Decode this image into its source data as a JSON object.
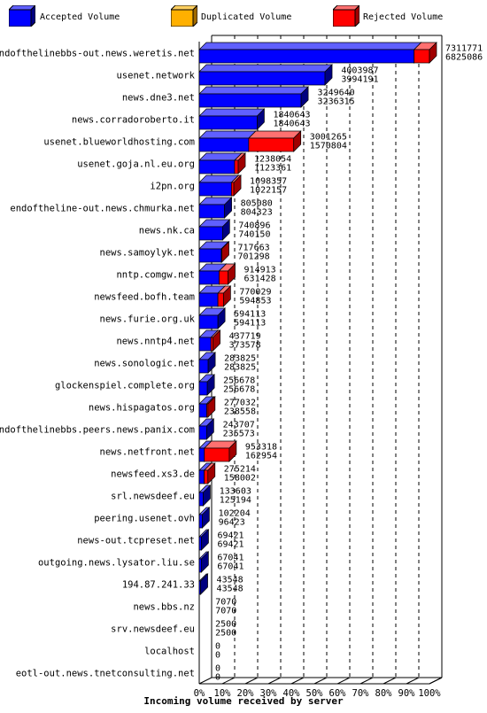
{
  "chart_data": {
    "type": "bar",
    "orientation": "horizontal",
    "stacking": "overlay-3d",
    "title": "Incoming volume received by server",
    "x_axis": {
      "range": [
        0,
        100
      ],
      "ticks": [
        "0%",
        "10%",
        "20%",
        "30%",
        "40%",
        "50%",
        "60%",
        "70%",
        "80%",
        "90%",
        "100%"
      ]
    },
    "legend": {
      "placement": "top",
      "items": [
        {
          "name": "Accepted Volume",
          "color": "#0000ff",
          "dark": "#000080"
        },
        {
          "name": "Duplicated Volume",
          "color": "#ffb000",
          "dark": "#a06a00"
        },
        {
          "name": "Rejected Volume",
          "color": "#ff0000",
          "dark": "#a00000"
        }
      ]
    },
    "max_value": 7311771,
    "rows": [
      {
        "server": "endofthelinebbs-out.news.weretis.net",
        "total": "7311771",
        "accepted": "6825086",
        "total_value": 7311771,
        "accepted_value": 6825086
      },
      {
        "server": "usenet.network",
        "total": "4003987",
        "accepted": "3994191",
        "total_value": 4003987,
        "accepted_value": 3994191
      },
      {
        "server": "news.dne3.net",
        "total": "3249640",
        "accepted": "3236315",
        "total_value": 3249640,
        "accepted_value": 3236315
      },
      {
        "server": "news.corradoroberto.it",
        "total": "1840643",
        "accepted": "1840643",
        "total_value": 1840643,
        "accepted_value": 1840643
      },
      {
        "server": "usenet.blueworldhosting.com",
        "total": "3001265",
        "accepted": "1570804",
        "total_value": 3001265,
        "accepted_value": 1570804
      },
      {
        "server": "usenet.goja.nl.eu.org",
        "total": "1238054",
        "accepted": "1123361",
        "total_value": 1238054,
        "accepted_value": 1123361
      },
      {
        "server": "i2pn.org",
        "total": "1098357",
        "accepted": "1022157",
        "total_value": 1098357,
        "accepted_value": 1022157
      },
      {
        "server": "endoftheline-out.news.chmurka.net",
        "total": "805080",
        "accepted": "804323",
        "total_value": 805080,
        "accepted_value": 804323
      },
      {
        "server": "news.nk.ca",
        "total": "740896",
        "accepted": "740150",
        "total_value": 740896,
        "accepted_value": 740150
      },
      {
        "server": "news.samoylyk.net",
        "total": "717663",
        "accepted": "701298",
        "total_value": 717663,
        "accepted_value": 701298
      },
      {
        "server": "nntp.comgw.net",
        "total": "914913",
        "accepted": "631428",
        "total_value": 914913,
        "accepted_value": 631428
      },
      {
        "server": "newsfeed.bofh.team",
        "total": "770029",
        "accepted": "594853",
        "total_value": 770029,
        "accepted_value": 594853
      },
      {
        "server": "news.furie.org.uk",
        "total": "594113",
        "accepted": "594113",
        "total_value": 594113,
        "accepted_value": 594113
      },
      {
        "server": "news.nntp4.net",
        "total": "437719",
        "accepted": "373578",
        "total_value": 437719,
        "accepted_value": 373578
      },
      {
        "server": "news.sonologic.net",
        "total": "283825",
        "accepted": "283825",
        "total_value": 283825,
        "accepted_value": 283825
      },
      {
        "server": "glockenspiel.complete.org",
        "total": "256678",
        "accepted": "256678",
        "total_value": 256678,
        "accepted_value": 256678
      },
      {
        "server": "news.hispagatos.org",
        "total": "277032",
        "accepted": "238558",
        "total_value": 277032,
        "accepted_value": 238558
      },
      {
        "server": "endofthelinebbs.peers.news.panix.com",
        "total": "243707",
        "accepted": "235573",
        "total_value": 243707,
        "accepted_value": 235573
      },
      {
        "server": "news.netfront.net",
        "total": "953318",
        "accepted": "162954",
        "total_value": 953318,
        "accepted_value": 162954
      },
      {
        "server": "newsfeed.xs3.de",
        "total": "275214",
        "accepted": "158002",
        "total_value": 275214,
        "accepted_value": 158002
      },
      {
        "server": "srl.newsdeef.eu",
        "total": "133603",
        "accepted": "125194",
        "total_value": 133603,
        "accepted_value": 125194
      },
      {
        "server": "peering.usenet.ovh",
        "total": "102204",
        "accepted": "96423",
        "total_value": 102204,
        "accepted_value": 96423
      },
      {
        "server": "news-out.tcpreset.net",
        "total": "69421",
        "accepted": "69421",
        "total_value": 69421,
        "accepted_value": 69421
      },
      {
        "server": "outgoing.news.lysator.liu.se",
        "total": "67041",
        "accepted": "67041",
        "total_value": 67041,
        "accepted_value": 67041
      },
      {
        "server": "194.87.241.33",
        "total": "43548",
        "accepted": "43548",
        "total_value": 43548,
        "accepted_value": 43548
      },
      {
        "server": "news.bbs.nz",
        "total": "7070",
        "accepted": "7070",
        "total_value": 7070,
        "accepted_value": 7070
      },
      {
        "server": "srv.newsdeef.eu",
        "total": "2500",
        "accepted": "2500",
        "total_value": 2500,
        "accepted_value": 2500
      },
      {
        "server": "localhost",
        "total": "0",
        "accepted": "0",
        "total_value": 0,
        "accepted_value": 0
      },
      {
        "server": "eotl-out.news.tnetconsulting.net",
        "total": "0",
        "accepted": "0",
        "total_value": 0,
        "accepted_value": 0
      }
    ]
  }
}
